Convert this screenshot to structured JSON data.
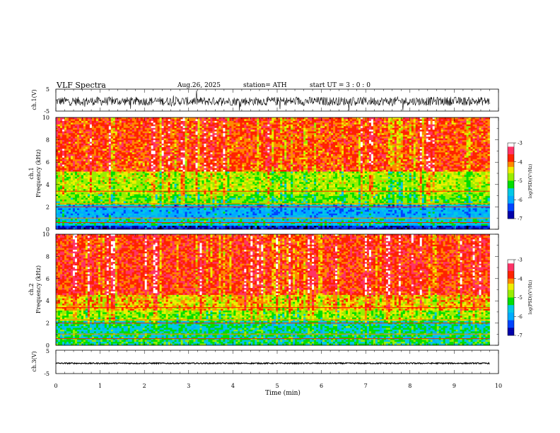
{
  "header": {
    "title": "VLF  Spectra",
    "date": "Aug.26, 2025",
    "station": "station= ATH",
    "start": "start  UT  =    3  : 0   : 0"
  },
  "colors": {
    "low": "#000000",
    "cyan": "#00c8e6",
    "green": "#00dd00",
    "yellow": "#eeee00",
    "orange": "#ff8800",
    "red": "#ff2200",
    "axis": "#000000"
  },
  "chart_data": [
    {
      "type": "line",
      "panel": "ch1-waveform",
      "ylabel": "ch.1(V)",
      "ytick_labels": [
        "5",
        "-5"
      ],
      "ylim": [
        -5,
        5
      ],
      "xlim": [
        0,
        10
      ],
      "x_extent_end": 9.8,
      "baseline": -0.5,
      "amplitude": 2.0
    },
    {
      "type": "heatmap",
      "panel": "ch1-spectrogram",
      "ylabel_lines": [
        "ch.1",
        "Frequency (kHz)"
      ],
      "ytick_labels": [
        "10",
        "8",
        "6",
        "4",
        "2",
        "0"
      ],
      "ylim": [
        0,
        10
      ],
      "xlim": [
        0,
        10
      ],
      "x_extent_end": 9.8,
      "bands": [
        {
          "from": 0.0,
          "to": 0.3,
          "level": -6.6
        },
        {
          "from": 0.3,
          "to": 1.0,
          "level": -5.6
        },
        {
          "from": 1.0,
          "to": 2.2,
          "level": -5.9
        },
        {
          "from": 2.2,
          "to": 3.2,
          "level": -5.0
        },
        {
          "from": 3.2,
          "to": 5.2,
          "level": -4.7
        },
        {
          "from": 5.2,
          "to": 10.0,
          "level": -3.9
        }
      ],
      "colorbar": {
        "label": "log(PSD)(V²/Hz)",
        "tick_labels": [
          "-3",
          "-4",
          "-5",
          "-6",
          "-7"
        ],
        "range": [
          -7,
          -3
        ]
      }
    },
    {
      "type": "heatmap",
      "panel": "ch2-spectrogram",
      "ylabel_lines": [
        "ch.2",
        "Frequency (kHz)"
      ],
      "ytick_labels": [
        "10",
        "8",
        "6",
        "4",
        "2",
        "0"
      ],
      "ylim": [
        0,
        10
      ],
      "xlim": [
        0,
        10
      ],
      "x_extent_end": 9.8,
      "bands": [
        {
          "from": 0.0,
          "to": 0.6,
          "level": -5.3
        },
        {
          "from": 0.6,
          "to": 2.2,
          "level": -5.4
        },
        {
          "from": 2.2,
          "to": 3.2,
          "level": -4.8
        },
        {
          "from": 3.2,
          "to": 4.6,
          "level": -4.3
        },
        {
          "from": 4.6,
          "to": 10.0,
          "level": -3.8
        }
      ],
      "colorbar": {
        "label": "log(PSD)(V²/Hz)",
        "tick_labels": [
          "-3",
          "-4",
          "-5",
          "-6",
          "-7"
        ],
        "range": [
          -7,
          -3
        ]
      }
    },
    {
      "type": "line",
      "panel": "ch3-waveform",
      "ylabel": "ch.3(V)",
      "ytick_labels": [
        "5",
        "-5"
      ],
      "ylim": [
        -5,
        5
      ],
      "xlim": [
        0,
        10
      ],
      "x_extent_end": 9.8,
      "baseline": -0.6,
      "amplitude": 0.25,
      "xlabel": "Time  (min)",
      "xtick_labels": [
        "0",
        "1",
        "2",
        "3",
        "4",
        "5",
        "6",
        "7",
        "8",
        "9",
        "10"
      ]
    }
  ]
}
